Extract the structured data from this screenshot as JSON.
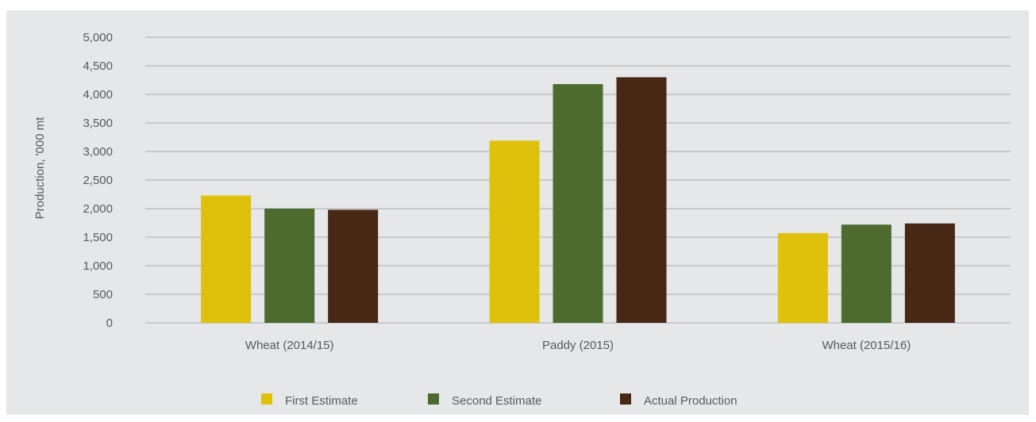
{
  "chart_data": {
    "type": "bar",
    "categories": [
      "Wheat (2014/15)",
      "Paddy  (2015)",
      "Wheat (2015/16)"
    ],
    "series": [
      {
        "name": "First Estimate",
        "color": "#dfc10b",
        "values": [
          2230,
          3190,
          1570
        ]
      },
      {
        "name": "Second Estimate",
        "color": "#4e6b2f",
        "values": [
          2000,
          4180,
          1720
        ]
      },
      {
        "name": "Actual Production",
        "color": "#472815",
        "values": [
          1980,
          4300,
          1740
        ]
      }
    ],
    "title": "",
    "xlabel": "",
    "ylabel": "Production, '000 mt",
    "ylim": [
      0,
      5000
    ],
    "yticks": [
      "0",
      "500",
      "1,000",
      "1,500",
      "2,000",
      "2,500",
      "3,000",
      "3,500",
      "4,000",
      "4,500",
      "5,000"
    ],
    "ytick_values": [
      0,
      500,
      1000,
      1500,
      2000,
      2500,
      3000,
      3500,
      4000,
      4500,
      5000
    ],
    "grid": true,
    "legend": "bottom-center",
    "colors": {
      "background": "#e6e7e8",
      "grid": "#a7a9ac",
      "text": "#58595b"
    }
  }
}
